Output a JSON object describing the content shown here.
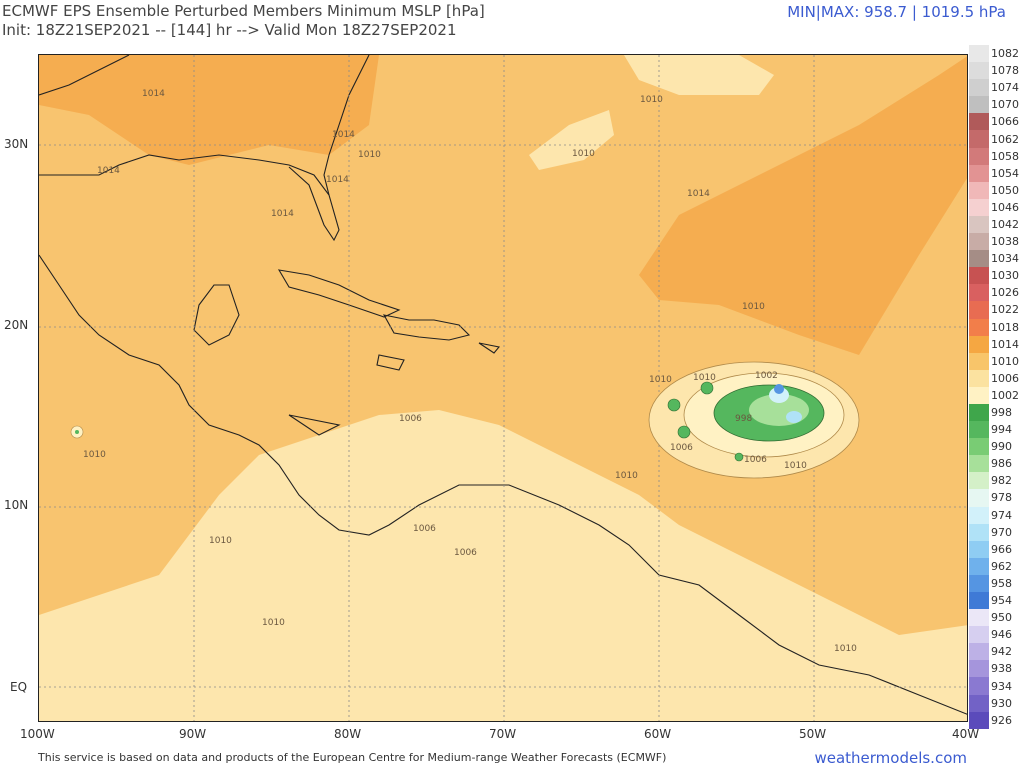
{
  "header": {
    "title_line1": "ECMWF EPS Ensemble Perturbed Members Minimum MSLP [hPa]",
    "title_line2": "Init: 18Z21SEP2021 -- [144] hr --> Valid Mon 18Z27SEP2021",
    "minmax": "MIN|MAX: 958.7 | 1019.5 hPa"
  },
  "footer": {
    "credit": "This service is based on data and products of the European Centre for Medium-range Weather Forecasts (ECMWF)",
    "brand": "weathermodels.com"
  },
  "axes": {
    "lat_labels": [
      "30N",
      "20N",
      "10N",
      "EQ"
    ],
    "lon_labels": [
      "100W",
      "90W",
      "80W",
      "70W",
      "60W",
      "50W",
      "40W"
    ]
  },
  "colorbar": {
    "labels": [
      "1082",
      "1078",
      "1074",
      "1070",
      "1066",
      "1062",
      "1058",
      "1054",
      "1050",
      "1046",
      "1042",
      "1038",
      "1034",
      "1030",
      "1026",
      "1022",
      "1018",
      "1014",
      "1010",
      "1006",
      "1002",
      "998",
      "994",
      "990",
      "986",
      "982",
      "978",
      "974",
      "970",
      "966",
      "962",
      "958",
      "954",
      "950",
      "946",
      "942",
      "938",
      "934",
      "930",
      "926"
    ],
    "colors": [
      "#e8e8e8",
      "#dcdcdc",
      "#cfcfcf",
      "#bfbfbf",
      "#b05a5a",
      "#c46a6a",
      "#d27a7a",
      "#e29393",
      "#f0b8b8",
      "#f5d0d0",
      "#d9c5c0",
      "#c8aca6",
      "#a58d86",
      "#c75252",
      "#d96060",
      "#e86c52",
      "#f27e4a",
      "#f5a742",
      "#f8c56a",
      "#fbe2a0",
      "#fff2c4",
      "#3fa64b",
      "#55b75e",
      "#79cc74",
      "#a7e09a",
      "#d4f0c8",
      "#e6f7f2",
      "#d2f1fa",
      "#b0e2f7",
      "#8fcdf3",
      "#6fb1ec",
      "#5595e2",
      "#3f7ad6",
      "#ebe7f7",
      "#d6cff0",
      "#bdb1e6",
      "#a595dc",
      "#8a79d1",
      "#7262c6",
      "#5b4bbb"
    ]
  },
  "map": {
    "contour_labels": [
      {
        "text": "1014"
      },
      {
        "text": "1010"
      },
      {
        "text": "1010"
      },
      {
        "text": "1014"
      },
      {
        "text": "1014"
      },
      {
        "text": "1014"
      },
      {
        "text": "1014"
      },
      {
        "text": "1010"
      },
      {
        "text": "1014"
      },
      {
        "text": "1010"
      },
      {
        "text": "1010"
      },
      {
        "text": "1006"
      },
      {
        "text": "1010"
      },
      {
        "text": "1010"
      },
      {
        "text": "1006"
      },
      {
        "text": "1010"
      },
      {
        "text": "1010"
      },
      {
        "text": "1006"
      },
      {
        "text": "1006"
      },
      {
        "text": "1006"
      },
      {
        "text": "1002"
      },
      {
        "text": "998"
      },
      {
        "text": "1010"
      },
      {
        "text": "1010"
      },
      {
        "text": "1010"
      }
    ]
  }
}
